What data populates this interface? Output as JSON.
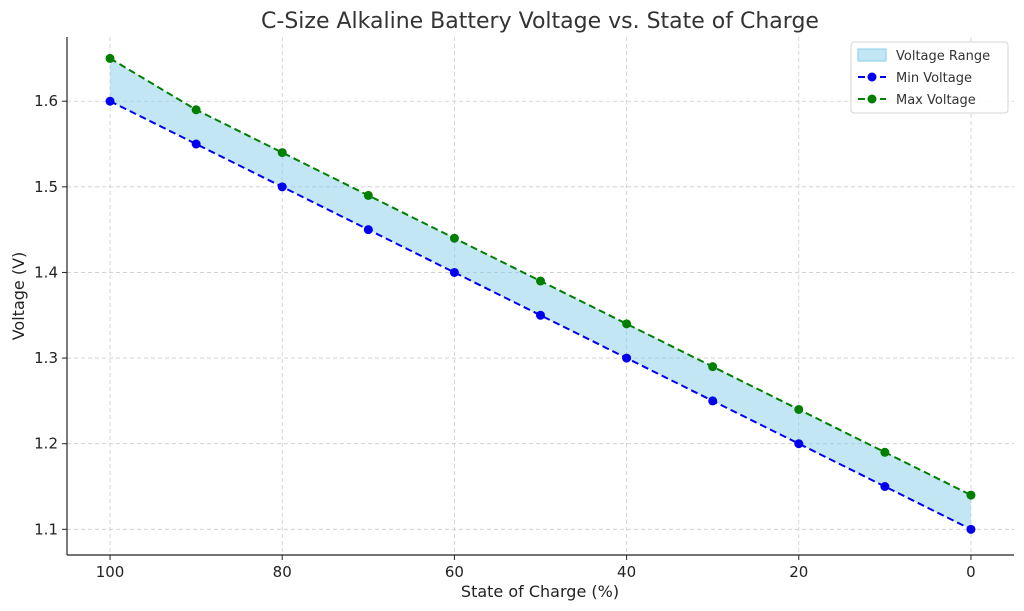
{
  "chart_data": {
    "type": "line",
    "title": "C-Size Alkaline Battery Voltage vs. State of Charge",
    "xlabel": "State of Charge (%)",
    "ylabel": "Voltage (V)",
    "xlim": [
      105,
      -5
    ],
    "ylim": [
      1.07,
      1.675
    ],
    "x_reversed": true,
    "xticks": [
      100,
      80,
      60,
      40,
      20,
      0
    ],
    "xtick_labels": [
      "100",
      "80",
      "60",
      "40",
      "20",
      "0"
    ],
    "yticks": [
      1.1,
      1.2,
      1.3,
      1.4,
      1.5,
      1.6
    ],
    "ytick_labels": [
      "1.1",
      "1.2",
      "1.3",
      "1.4",
      "1.5",
      "1.6"
    ],
    "grid": true,
    "legend_position": "top-right",
    "x": [
      100,
      90,
      80,
      70,
      60,
      50,
      40,
      30,
      20,
      10,
      0
    ],
    "series": [
      {
        "name": "Min Voltage",
        "color": "#0000ee",
        "style": "dashed-marker",
        "values": [
          1.6,
          1.55,
          1.5,
          1.45,
          1.4,
          1.35,
          1.3,
          1.25,
          1.2,
          1.15,
          1.1
        ]
      },
      {
        "name": "Max Voltage",
        "color": "#007f00",
        "style": "dashed-marker",
        "values": [
          1.65,
          1.59,
          1.54,
          1.49,
          1.44,
          1.39,
          1.34,
          1.29,
          1.24,
          1.19,
          1.14
        ]
      }
    ],
    "fill_between": {
      "name": "Voltage Range",
      "color": "#87ceeb",
      "opacity": 0.5,
      "lower": "Min Voltage",
      "upper": "Max Voltage"
    }
  }
}
